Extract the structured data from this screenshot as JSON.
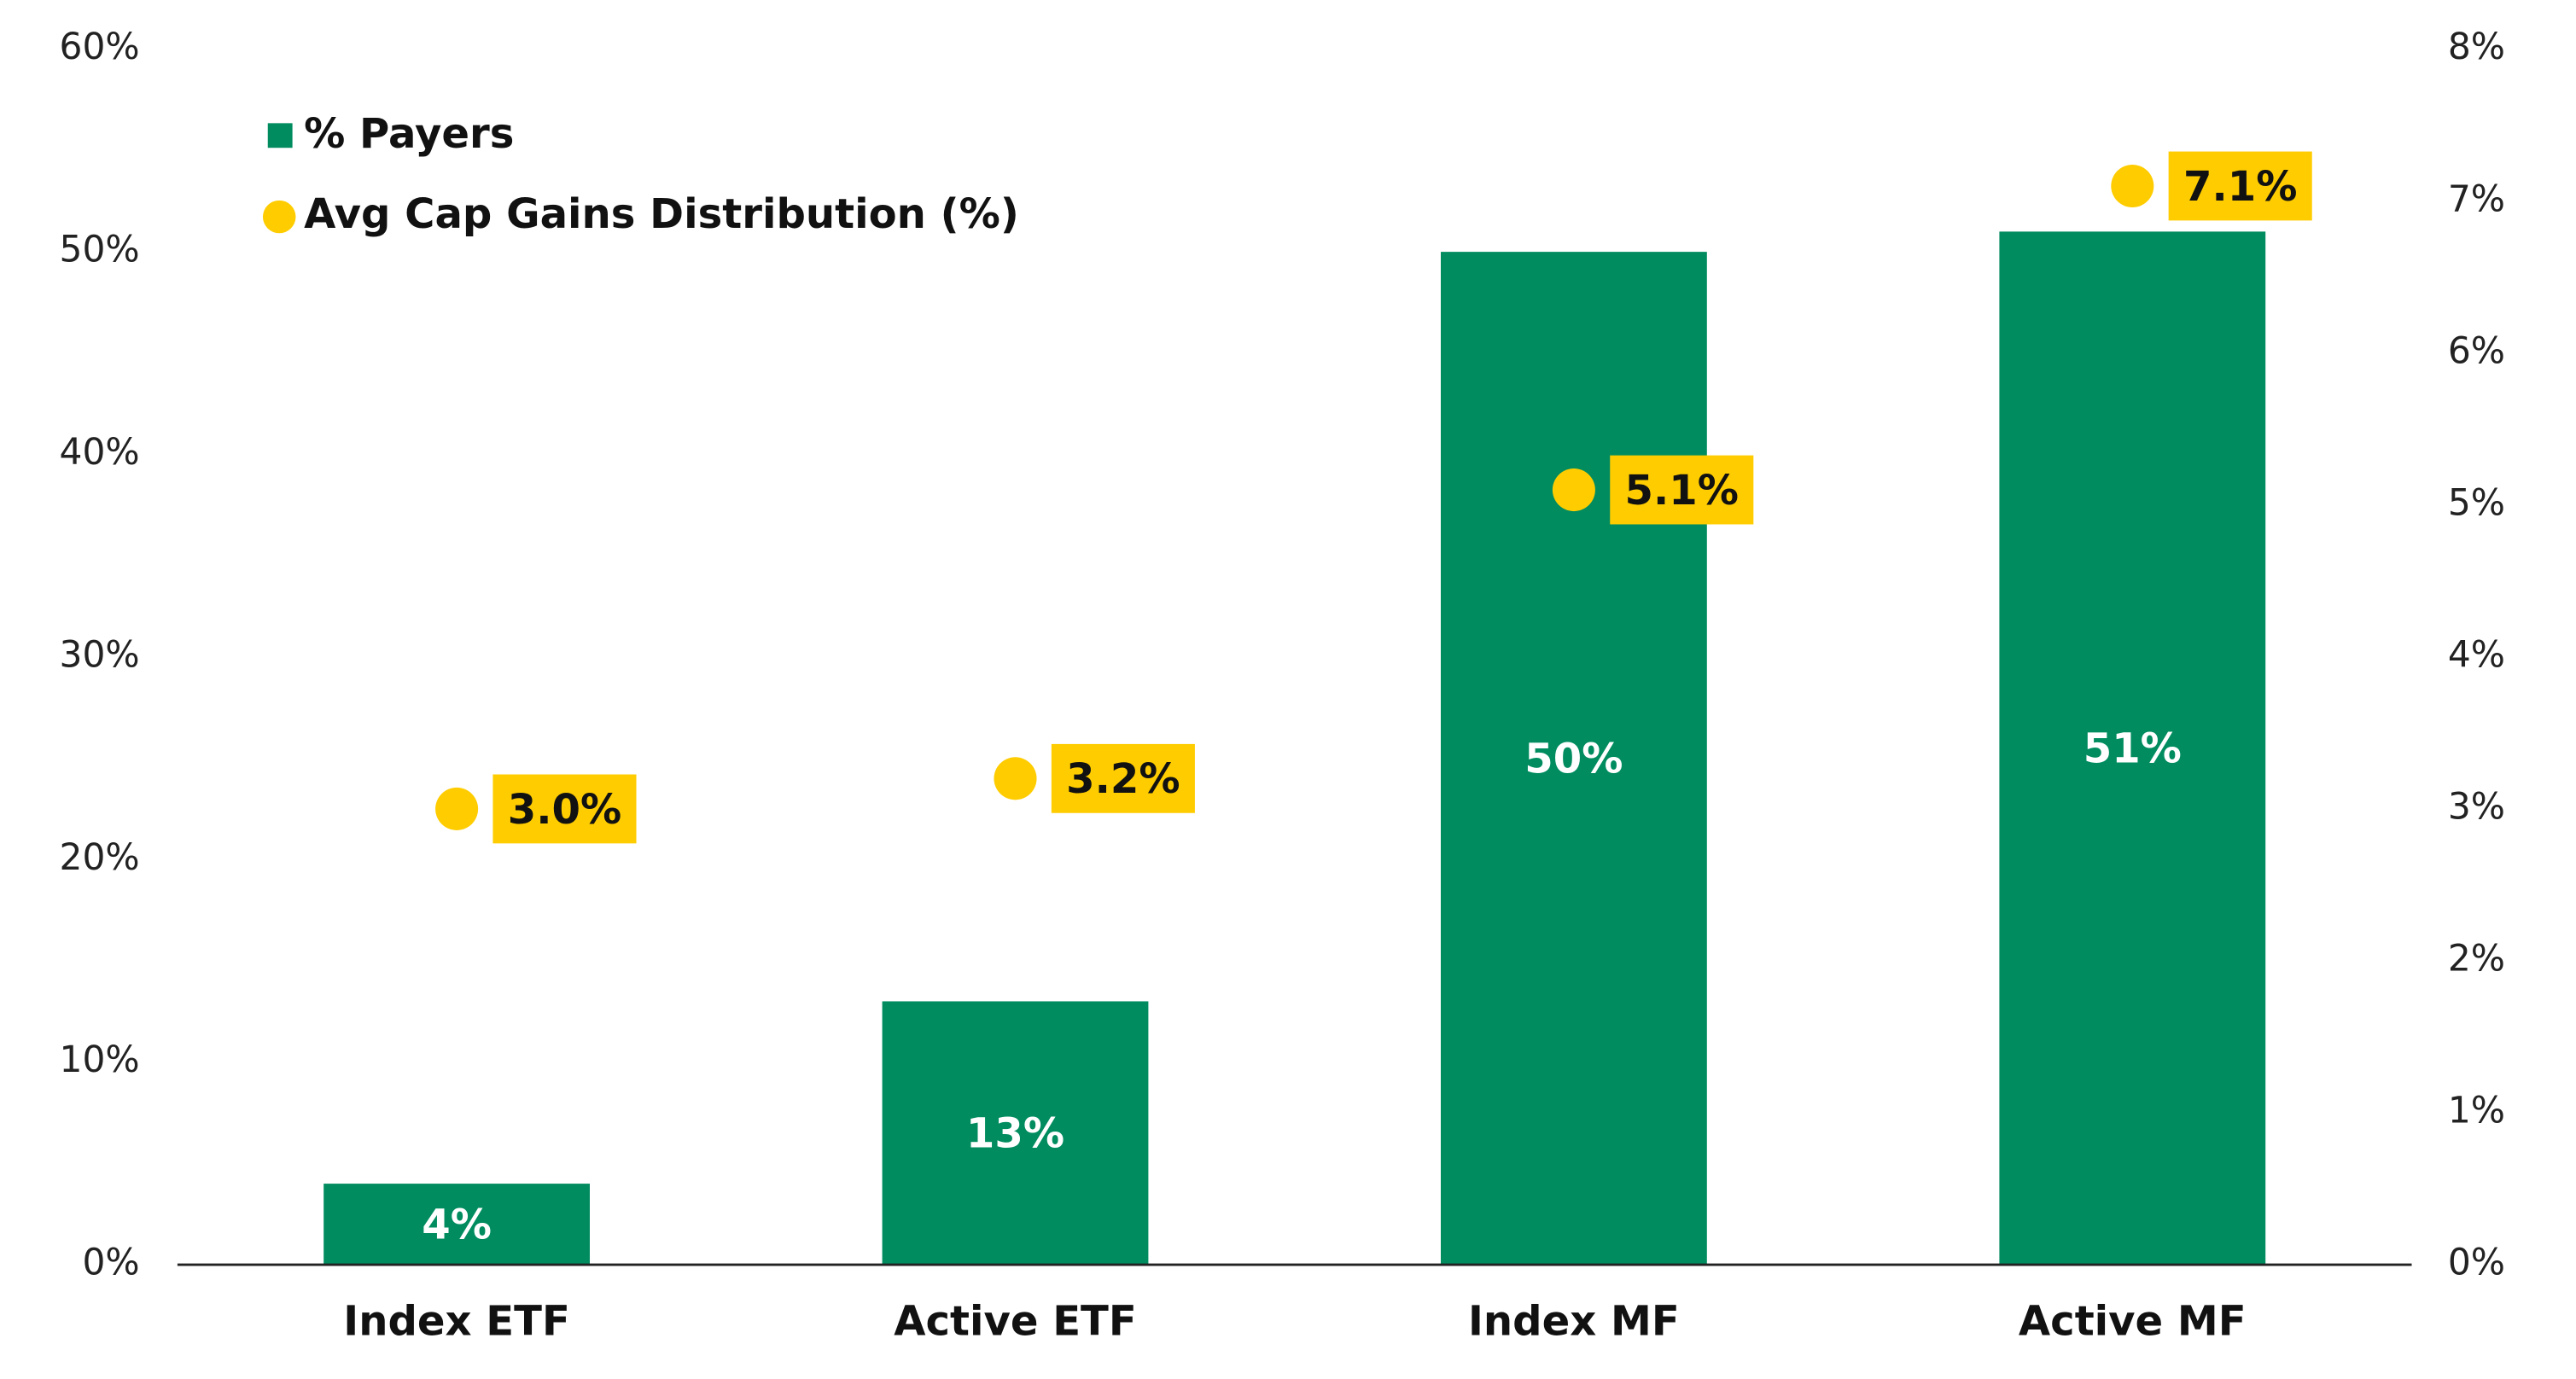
{
  "chart_data": {
    "type": "bar",
    "categories": [
      "Index ETF",
      "Active ETF",
      "Index MF",
      "Active MF"
    ],
    "series": [
      {
        "name": "% Payers",
        "color": "#008c5f",
        "values": [
          4,
          13,
          50,
          51
        ],
        "value_labels": [
          "4%",
          "13%",
          "50%",
          "51%"
        ]
      },
      {
        "name": "Avg Cap Gains Distribution (%)",
        "type": "scatter",
        "axis": "y2",
        "color": "#ffcc00",
        "values": [
          3.0,
          3.2,
          5.1,
          7.1
        ],
        "value_labels": [
          "3.0%",
          "3.2%",
          "5.1%",
          "7.1%"
        ]
      }
    ],
    "ylim": [
      0,
      60
    ],
    "yticks": [
      {
        "value": 0,
        "label": "0%"
      },
      {
        "value": 10,
        "label": "10%"
      },
      {
        "value": 20,
        "label": "20%"
      },
      {
        "value": 30,
        "label": "30%"
      },
      {
        "value": 40,
        "label": "40%"
      },
      {
        "value": 50,
        "label": "50%"
      },
      {
        "value": 60,
        "label": "60%"
      }
    ],
    "y2lim": [
      0,
      8
    ],
    "y2ticks": [
      {
        "value": 0,
        "label": "0%"
      },
      {
        "value": 1,
        "label": "1%"
      },
      {
        "value": 2,
        "label": "2%"
      },
      {
        "value": 3,
        "label": "3%"
      },
      {
        "value": 4,
        "label": "4%"
      },
      {
        "value": 5,
        "label": "5%"
      },
      {
        "value": 6,
        "label": "6%"
      },
      {
        "value": 7,
        "label": "7%"
      },
      {
        "value": 8,
        "label": "8%"
      }
    ],
    "legend": "top-left"
  }
}
